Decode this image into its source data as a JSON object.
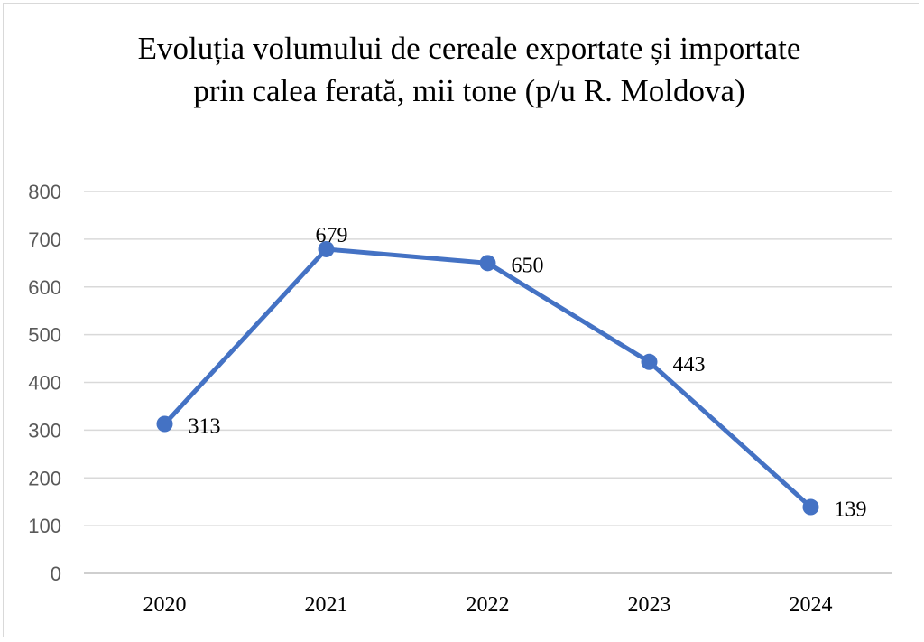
{
  "chart_data": {
    "type": "line",
    "title": "Evoluția volumului de cereale exportate și importate prin calea ferată, mii tone (p/u R. Moldova)",
    "categories": [
      "2020",
      "2021",
      "2022",
      "2023",
      "2024"
    ],
    "series": [
      {
        "values": [
          313,
          679,
          650,
          443,
          139
        ],
        "color": "#4472c4"
      }
    ],
    "ylim": [
      0,
      800
    ],
    "yticks": [
      0,
      100,
      200,
      300,
      400,
      500,
      600,
      700,
      800
    ],
    "grid": true,
    "data_labels": true,
    "xlabel": "",
    "ylabel": ""
  }
}
